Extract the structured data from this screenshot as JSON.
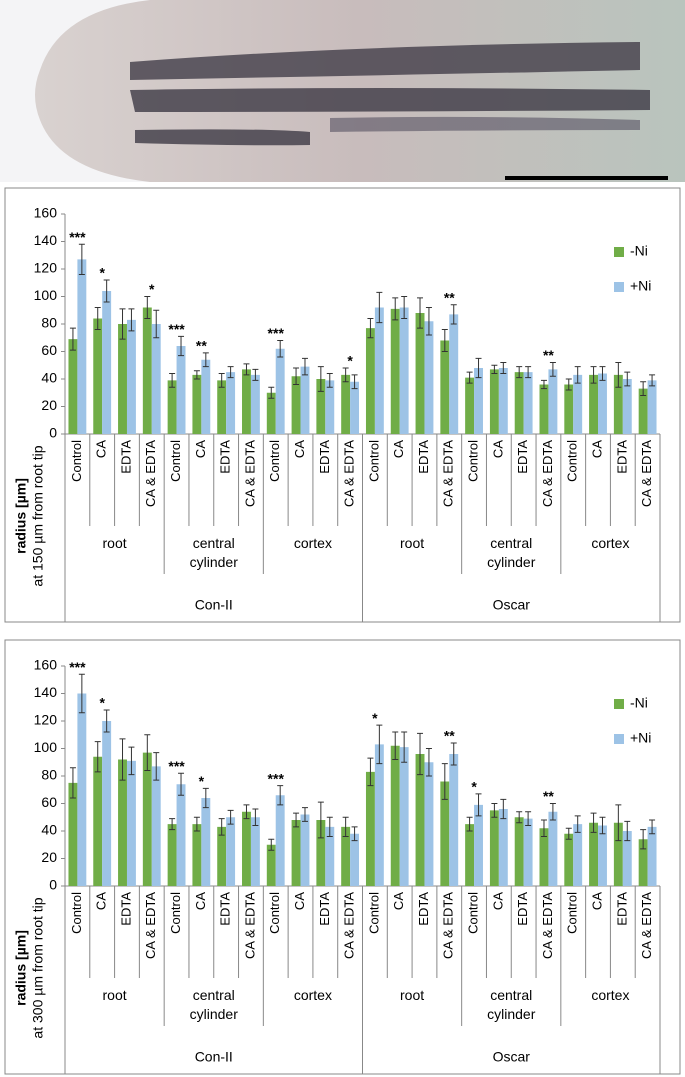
{
  "chart_data": [
    {
      "type": "bar",
      "y_label": "radius [µm]",
      "y_sublabel": "at 150 µm from root tip",
      "categories": [
        "Control",
        "CA",
        "EDTA",
        "CA & EDTA",
        "Control",
        "CA",
        "EDTA",
        "CA & EDTA",
        "Control",
        "CA",
        "EDTA",
        "CA & EDTA",
        "Control",
        "CA",
        "EDTA",
        "CA & EDTA",
        "Control",
        "CA",
        "EDTA",
        "CA & EDTA",
        "Control",
        "CA",
        "EDTA",
        "CA & EDTA"
      ],
      "groups": [
        "root",
        "central cylinder",
        "cortex",
        "root",
        "central cylinder",
        "cortex"
      ],
      "supergroups": [
        "Con-II",
        "Oscar"
      ],
      "series": [
        {
          "name": "-Ni",
          "color": "#70ad47",
          "values": [
            69,
            84,
            80,
            92,
            39,
            43,
            39,
            47,
            30,
            42,
            40,
            43,
            77,
            91,
            88,
            68,
            41,
            47,
            45,
            36,
            36,
            43,
            43,
            33
          ],
          "errors": [
            8,
            8,
            11,
            8,
            5,
            3,
            5,
            4,
            4,
            6,
            9,
            5,
            7,
            8,
            11,
            8,
            4,
            3,
            4,
            3,
            4,
            6,
            9,
            5
          ]
        },
        {
          "name": "+Ni",
          "color": "#9dc3e6",
          "values": [
            127,
            104,
            83,
            80,
            64,
            54,
            45,
            43,
            62,
            49,
            39,
            38,
            92,
            92,
            82,
            87,
            48,
            48,
            45,
            47,
            43,
            44,
            40,
            39
          ],
          "errors": [
            11,
            8,
            8,
            10,
            7,
            5,
            4,
            4,
            6,
            6,
            5,
            5,
            11,
            8,
            10,
            7,
            7,
            4,
            4,
            5,
            6,
            5,
            5,
            4
          ]
        }
      ],
      "significance": [
        "***",
        "*",
        null,
        "*",
        "***",
        "**",
        null,
        null,
        "***",
        null,
        null,
        "*",
        null,
        null,
        null,
        "**",
        null,
        null,
        null,
        "**",
        null,
        null,
        null,
        null
      ],
      "ylim": [
        0,
        160
      ],
      "yticks": [
        0,
        20,
        40,
        60,
        80,
        100,
        120,
        140,
        160
      ],
      "grid": false
    },
    {
      "type": "bar",
      "y_label": "radius [µm]",
      "y_sublabel": "at 300 µm from root tip",
      "categories": [
        "Control",
        "CA",
        "EDTA",
        "CA & EDTA",
        "Control",
        "CA",
        "EDTA",
        "CA & EDTA",
        "Control",
        "CA",
        "EDTA",
        "CA & EDTA",
        "Control",
        "CA",
        "EDTA",
        "CA & EDTA",
        "Control",
        "CA",
        "EDTA",
        "CA & EDTA",
        "Control",
        "CA",
        "EDTA",
        "CA & EDTA"
      ],
      "groups": [
        "root",
        "central cylinder",
        "cortex",
        "root",
        "central cylinder",
        "cortex"
      ],
      "supergroups": [
        "Con-II",
        "Oscar"
      ],
      "series": [
        {
          "name": "-Ni",
          "color": "#70ad47",
          "values": [
            75,
            94,
            92,
            97,
            45,
            45,
            43,
            54,
            30,
            48,
            48,
            43,
            83,
            102,
            96,
            76,
            45,
            55,
            50,
            42,
            38,
            46,
            46,
            34
          ],
          "errors": [
            11,
            11,
            15,
            13,
            4,
            5,
            6,
            5,
            4,
            5,
            13,
            7,
            10,
            10,
            15,
            13,
            5,
            5,
            4,
            6,
            4,
            7,
            13,
            7
          ]
        },
        {
          "name": "+Ni",
          "color": "#9dc3e6",
          "values": [
            140,
            120,
            91,
            87,
            74,
            64,
            50,
            50,
            66,
            52,
            43,
            38,
            103,
            101,
            90,
            96,
            59,
            56,
            49,
            54,
            45,
            44,
            40,
            43
          ],
          "errors": [
            14,
            8,
            10,
            10,
            8,
            7,
            5,
            6,
            7,
            5,
            7,
            5,
            14,
            11,
            10,
            8,
            8,
            7,
            5,
            6,
            6,
            6,
            7,
            5
          ]
        }
      ],
      "significance": [
        "***",
        "*",
        null,
        null,
        "***",
        "*",
        null,
        null,
        "***",
        null,
        null,
        null,
        "*",
        null,
        null,
        "**",
        "*",
        null,
        null,
        "**",
        null,
        null,
        null,
        null
      ],
      "ylim": [
        0,
        160
      ],
      "yticks": [
        0,
        20,
        40,
        60,
        80,
        100,
        120,
        140,
        160
      ],
      "grid": false
    }
  ]
}
